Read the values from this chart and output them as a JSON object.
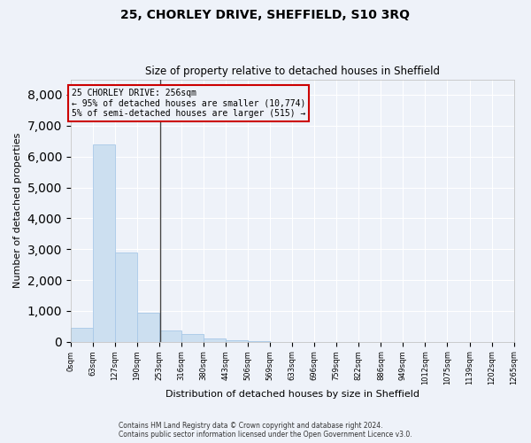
{
  "title1": "25, CHORLEY DRIVE, SHEFFIELD, S10 3RQ",
  "title2": "Size of property relative to detached houses in Sheffield",
  "xlabel": "Distribution of detached houses by size in Sheffield",
  "ylabel": "Number of detached properties",
  "footnote1": "Contains HM Land Registry data © Crown copyright and database right 2024.",
  "footnote2": "Contains public sector information licensed under the Open Government Licence v3.0.",
  "annotation_line1": "25 CHORLEY DRIVE: 256sqm",
  "annotation_line2": "← 95% of detached houses are smaller (10,774)",
  "annotation_line3": "5% of semi-detached houses are larger (515) →",
  "bar_color": "#ccdff0",
  "bar_edge_color": "#a8c8e8",
  "vline_color": "#444444",
  "annotation_box_color": "#cc0000",
  "background_color": "#eef2f9",
  "property_size": 256,
  "bin_edges": [
    0,
    63,
    127,
    190,
    253,
    316,
    380,
    443,
    506,
    569,
    633,
    696,
    759,
    822,
    886,
    949,
    1012,
    1075,
    1139,
    1202,
    1265
  ],
  "bin_labels": [
    "0sqm",
    "63sqm",
    "127sqm",
    "190sqm",
    "253sqm",
    "316sqm",
    "380sqm",
    "443sqm",
    "506sqm",
    "569sqm",
    "633sqm",
    "696sqm",
    "759sqm",
    "822sqm",
    "886sqm",
    "949sqm",
    "1012sqm",
    "1075sqm",
    "1139sqm",
    "1202sqm",
    "1265sqm"
  ],
  "counts": [
    450,
    6400,
    2900,
    950,
    370,
    250,
    100,
    40,
    10,
    0,
    0,
    0,
    0,
    0,
    0,
    0,
    0,
    0,
    0,
    0
  ],
  "ylim": [
    0,
    8500
  ],
  "yticks": [
    0,
    1000,
    2000,
    3000,
    4000,
    5000,
    6000,
    7000,
    8000
  ]
}
